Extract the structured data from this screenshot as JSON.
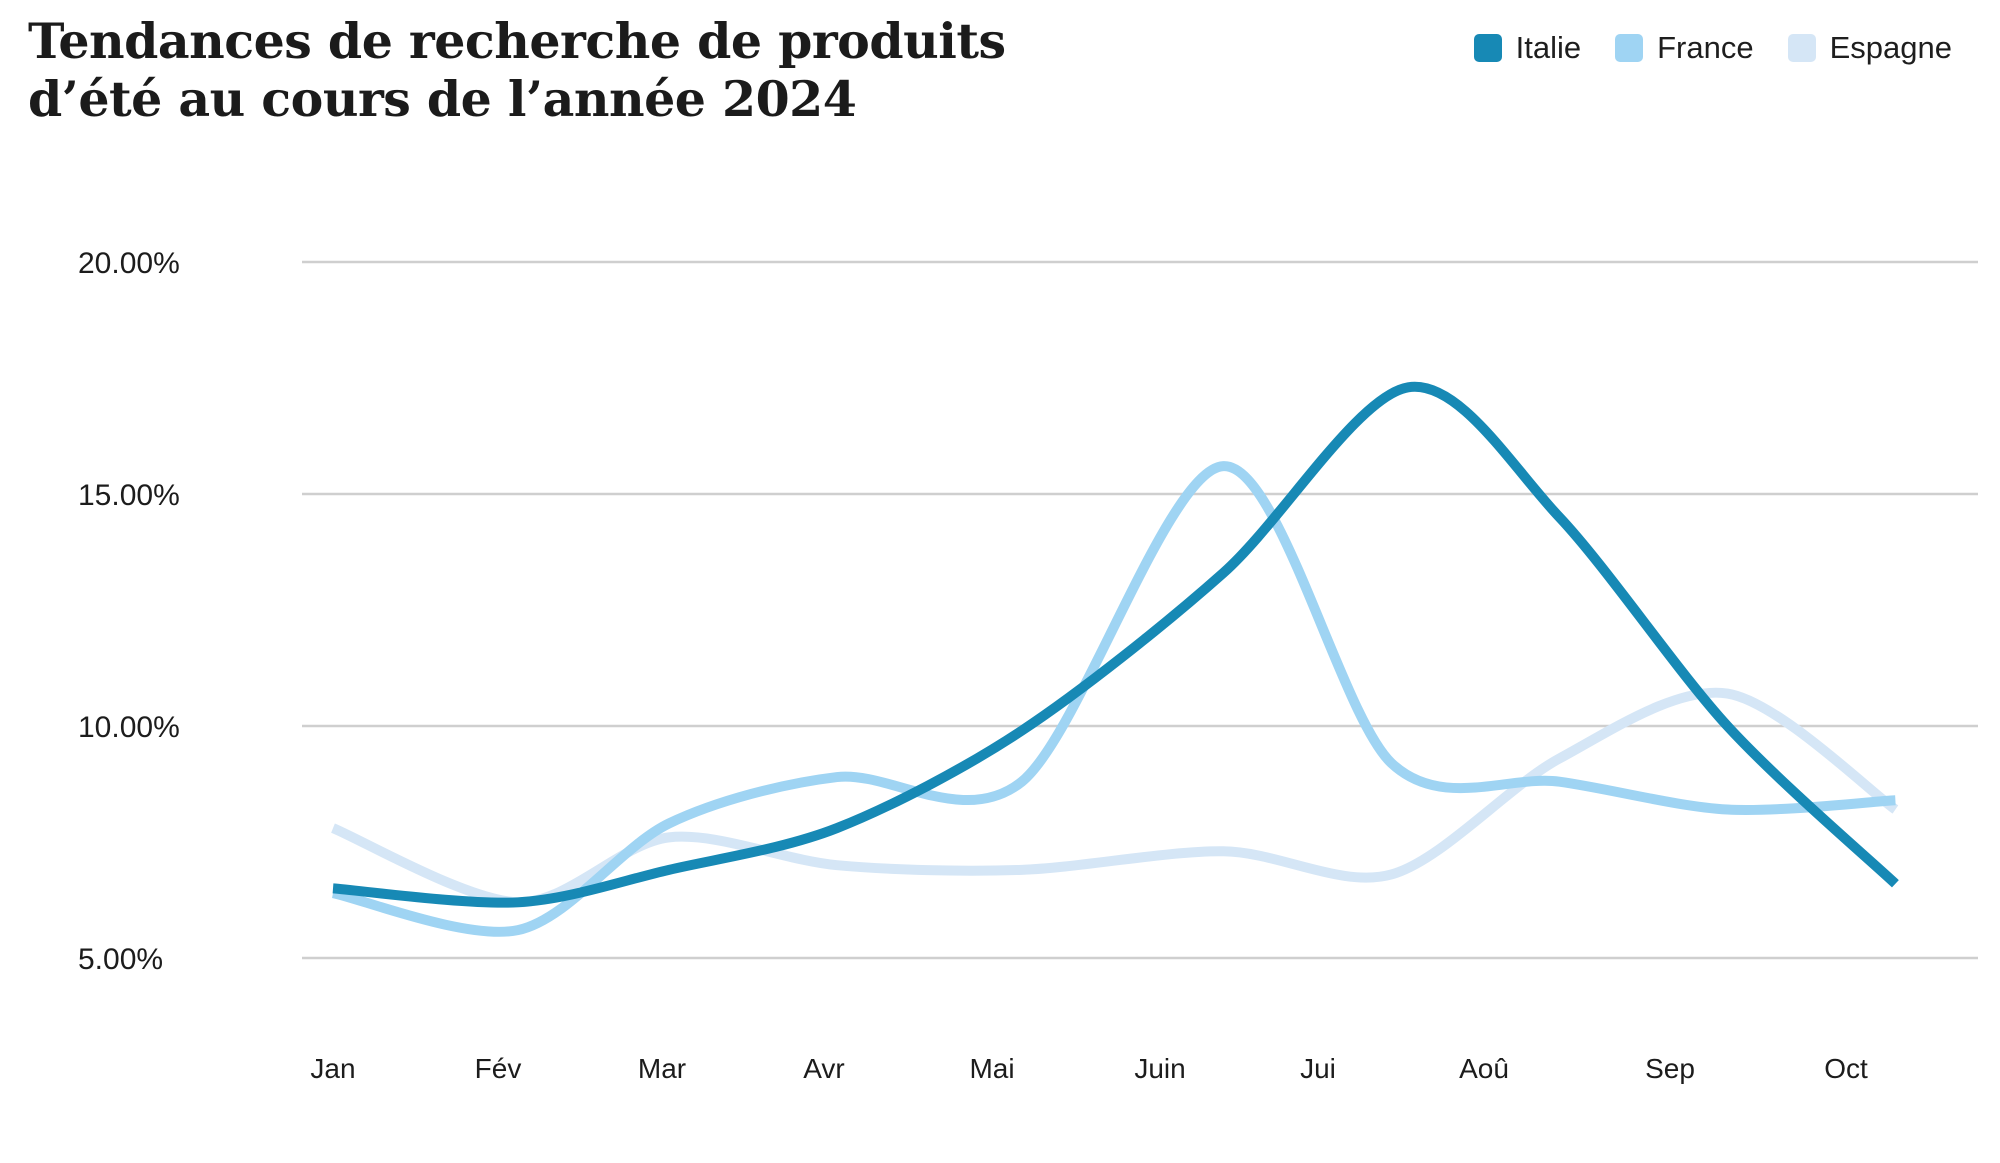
{
  "chart_data": {
    "type": "line",
    "title_lines": [
      "Tendances de recherche de produits",
      "d’été au cours de l’année 2024"
    ],
    "categories": [
      "Jan",
      "Fév",
      "Mar",
      "Avr",
      "Mai",
      "Juin",
      "Jui",
      "Aoû",
      "Sep",
      "Oct"
    ],
    "y_ticks": [
      20,
      15,
      10,
      5
    ],
    "y_tick_labels": [
      "20.00%",
      "15.00%",
      "10.00%",
      "5.00%"
    ],
    "ylim": [
      5,
      20
    ],
    "grid": true,
    "legend_position": "top-right",
    "series": [
      {
        "name": "Italie",
        "color": "#1789B5",
        "x": [
          0,
          1.1,
          2.0,
          3.0,
          4.1,
          5.3,
          6.4,
          7.3,
          8.3,
          9.3
        ],
        "values": [
          6.5,
          6.2,
          6.9,
          7.8,
          9.9,
          13.3,
          17.3,
          14.5,
          10.0,
          6.6
        ]
      },
      {
        "name": "France",
        "color": "#9FD4F3",
        "x": [
          0,
          1.1,
          2.0,
          3.0,
          4.1,
          5.3,
          6.3,
          7.3,
          8.3,
          9.3
        ],
        "values": [
          6.4,
          5.6,
          7.9,
          8.9,
          8.8,
          15.6,
          9.2,
          8.8,
          8.2,
          8.4
        ]
      },
      {
        "name": "Espagne",
        "color": "#D5E6F6",
        "x": [
          0,
          1.1,
          2.0,
          3.0,
          4.1,
          5.3,
          6.3,
          7.3,
          8.3,
          9.3
        ],
        "values": [
          7.8,
          6.2,
          7.6,
          7.0,
          6.9,
          7.3,
          6.8,
          9.3,
          10.7,
          8.2
        ]
      }
    ]
  }
}
